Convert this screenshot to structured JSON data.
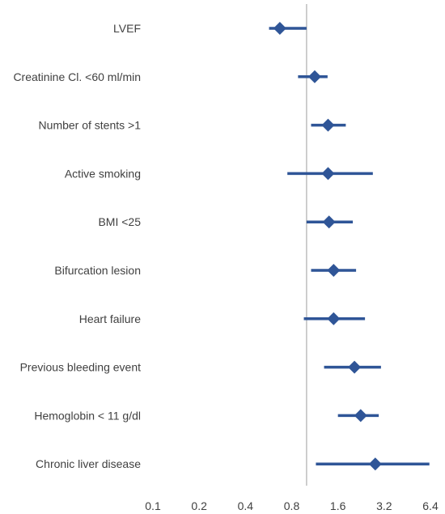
{
  "chart_data": {
    "type": "forest",
    "title": "",
    "xlabel": "",
    "ylabel": "",
    "x_scale": "log2",
    "xlim": [
      0.1,
      6.4
    ],
    "x_ticks": [
      0.1,
      0.2,
      0.4,
      0.8,
      1.6,
      3.2,
      6.4
    ],
    "x_tick_labels": [
      "0.1",
      "0.2",
      "0.4",
      "0.8",
      "1.6",
      "3.2",
      "6.4"
    ],
    "reference_line": 1,
    "grid": false,
    "colors": {
      "marker": "#2F5597",
      "reference": "#BFBFBF",
      "text": "#404040"
    },
    "categories": [
      "LVEF",
      "Creatinine Cl. <60 ml/min",
      "Number of stents >1",
      "Active smoking",
      "BMI <25",
      "Bifurcation lesion",
      "Heart failure",
      "Previous bleeding event",
      "Hemoglobin < 11 g/dl",
      "Chronic liver disease"
    ],
    "estimates": [
      0.67,
      1.13,
      1.38,
      1.38,
      1.4,
      1.5,
      1.5,
      2.05,
      2.25,
      2.8
    ],
    "ci_low": [
      0.57,
      0.88,
      1.07,
      0.75,
      1.0,
      1.07,
      0.96,
      1.3,
      1.6,
      1.15
    ],
    "ci_high": [
      1.0,
      1.37,
      1.8,
      2.7,
      2.0,
      2.1,
      2.4,
      3.05,
      2.95,
      6.3
    ]
  }
}
